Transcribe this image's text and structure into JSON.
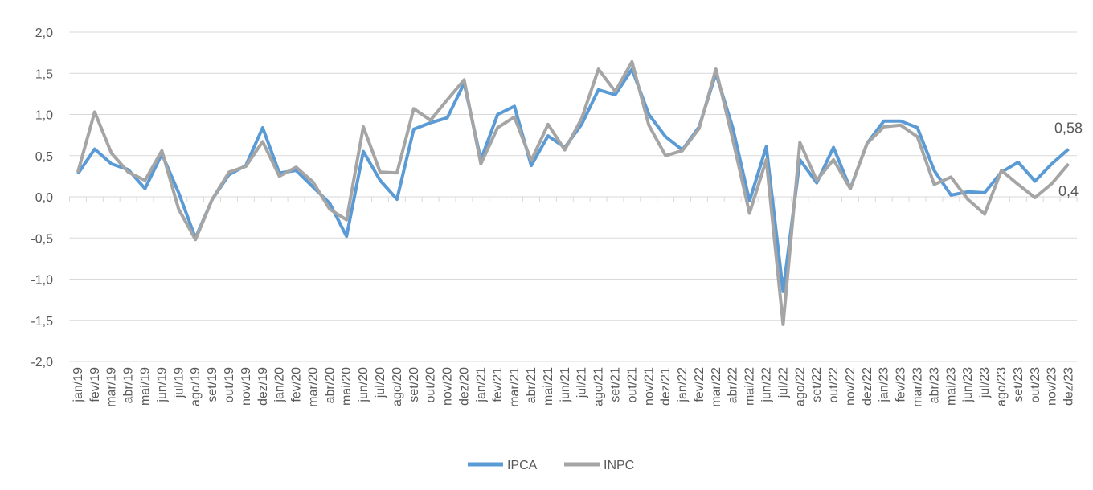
{
  "chart_data": {
    "type": "line",
    "categories": [
      "jan/19",
      "fev/19",
      "mar/19",
      "abr/19",
      "mai/19",
      "jun/19",
      "jul/19",
      "ago/19",
      "set/19",
      "out/19",
      "nov/19",
      "dez/19",
      "jan/20",
      "fev/20",
      "mar/20",
      "abr/20",
      "mai/20",
      "jun/20",
      "jul/20",
      "ago/20",
      "set/20",
      "out/20",
      "nov/20",
      "dez/20",
      "jan/21",
      "fev/21",
      "mar/21",
      "abr/21",
      "mai/21",
      "jun/21",
      "jul/21",
      "ago/21",
      "set/21",
      "out/21",
      "nov/21",
      "dez/21",
      "jan/22",
      "fev/22",
      "mar/22",
      "abr/22",
      "mai/22",
      "jun/22",
      "jul/22",
      "ago/22",
      "set/22",
      "out/22",
      "nov/22",
      "dez/22",
      "jan/23",
      "fev/23",
      "mar/23",
      "abr/23",
      "mai/23",
      "jun/23",
      "jul/23",
      "ago/23",
      "set/23",
      "out/23",
      "nov/23",
      "dez/23"
    ],
    "series": [
      {
        "name": "IPCA",
        "color": "#5b9bd5",
        "values": [
          0.28,
          0.58,
          0.4,
          0.33,
          0.1,
          0.52,
          0.05,
          -0.5,
          -0.03,
          0.27,
          0.38,
          0.84,
          0.29,
          0.32,
          0.12,
          -0.08,
          -0.48,
          0.55,
          0.2,
          -0.03,
          0.82,
          0.9,
          0.96,
          1.38,
          0.45,
          1.0,
          1.1,
          0.38,
          0.74,
          0.6,
          0.88,
          1.3,
          1.24,
          1.55,
          1.0,
          0.73,
          0.57,
          0.85,
          1.5,
          0.84,
          -0.05,
          0.61,
          -1.15,
          0.45,
          0.17,
          0.6,
          0.1,
          0.65,
          0.92,
          0.92,
          0.84,
          0.32,
          0.02,
          0.06,
          0.05,
          0.3,
          0.42,
          0.19,
          0.4,
          0.58
        ],
        "value_labels": [
          null,
          null,
          null,
          null,
          null,
          null,
          null,
          null,
          null,
          null,
          null,
          null,
          null,
          null,
          null,
          null,
          null,
          null,
          null,
          null,
          null,
          null,
          null,
          null,
          null,
          null,
          null,
          null,
          null,
          null,
          null,
          null,
          null,
          null,
          null,
          null,
          null,
          null,
          null,
          null,
          null,
          null,
          null,
          null,
          null,
          null,
          null,
          null,
          null,
          null,
          null,
          null,
          null,
          null,
          null,
          null,
          null,
          null,
          null,
          "0,58"
        ]
      },
      {
        "name": "INPC",
        "color": "#a5a5a5",
        "values": [
          0.3,
          1.03,
          0.53,
          0.3,
          0.2,
          0.56,
          -0.15,
          -0.52,
          -0.03,
          0.3,
          0.37,
          0.67,
          0.25,
          0.36,
          0.18,
          -0.15,
          -0.28,
          0.85,
          0.3,
          0.29,
          1.07,
          0.93,
          1.18,
          1.42,
          0.4,
          0.84,
          0.97,
          0.44,
          0.88,
          0.57,
          0.95,
          1.55,
          1.28,
          1.64,
          0.87,
          0.5,
          0.56,
          0.83,
          1.55,
          0.7,
          -0.2,
          0.45,
          -1.55,
          0.66,
          0.2,
          0.45,
          0.1,
          0.65,
          0.85,
          0.87,
          0.73,
          0.15,
          0.24,
          -0.03,
          -0.21,
          0.32,
          0.15,
          -0.01,
          0.16,
          0.4
        ],
        "value_labels": [
          null,
          null,
          null,
          null,
          null,
          null,
          null,
          null,
          null,
          null,
          null,
          null,
          null,
          null,
          null,
          null,
          null,
          null,
          null,
          null,
          null,
          null,
          null,
          null,
          null,
          null,
          null,
          null,
          null,
          null,
          null,
          null,
          null,
          null,
          null,
          null,
          null,
          null,
          null,
          null,
          null,
          null,
          null,
          null,
          null,
          null,
          null,
          null,
          null,
          null,
          null,
          null,
          null,
          null,
          null,
          null,
          null,
          null,
          null,
          "0,4"
        ]
      }
    ],
    "ylim": [
      -2.0,
      2.0
    ],
    "yticks": [
      {
        "value": -2.0,
        "label": "-2,0"
      },
      {
        "value": -1.5,
        "label": "-1,5"
      },
      {
        "value": -1.0,
        "label": "-1,0"
      },
      {
        "value": -0.5,
        "label": "-0,5"
      },
      {
        "value": 0.0,
        "label": "0,0"
      },
      {
        "value": 0.5,
        "label": "0,5"
      },
      {
        "value": 1.0,
        "label": "1,0"
      },
      {
        "value": 1.5,
        "label": "1,5"
      },
      {
        "value": 2.0,
        "label": "2,0"
      }
    ],
    "grid": true,
    "legend": "bottom"
  }
}
